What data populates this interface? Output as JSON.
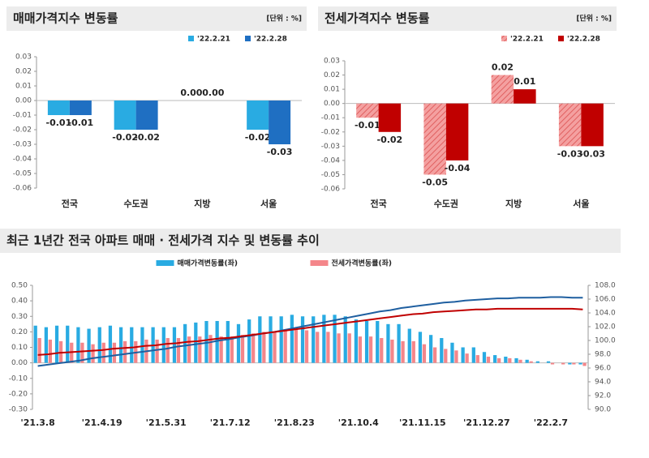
{
  "chart_data": [
    {
      "type": "bar",
      "title": "매매가격지수 변동률",
      "unit": "[단위 : %]",
      "categories": [
        "전국",
        "수도권",
        "지방",
        "서울"
      ],
      "series": [
        {
          "name": "'22.2.21",
          "color": "#29abe2",
          "values": [
            -0.01,
            -0.02,
            0,
            -0.02
          ],
          "value_labels": [
            "-0.01",
            "-0.02",
            "0.00",
            "-0.02"
          ]
        },
        {
          "name": "'22.2.28",
          "color": "#1f6fc2",
          "values": [
            -0.01,
            -0.02,
            0,
            -0.03
          ],
          "value_labels": [
            "-0.01",
            "-0.02",
            "0.00",
            "-0.03"
          ]
        }
      ],
      "ylim": [
        -0.06,
        0.03
      ],
      "yticks": [
        0.03,
        0.02,
        0.01,
        {
          "value": 0,
          "label": "0.00"
        },
        -0.01,
        -0.02,
        -0.03,
        -0.04,
        -0.05,
        -0.06
      ],
      "legend": "top-right",
      "grid": false
    },
    {
      "type": "bar",
      "title": "전세가격지수 변동률",
      "unit": "[단위 : %]",
      "categories": [
        "전국",
        "수도권",
        "지방",
        "서울"
      ],
      "series": [
        {
          "name": "'22.2.21",
          "color": "#f08080",
          "hatch": true,
          "values": [
            -0.01,
            -0.05,
            0.02,
            -0.03
          ]
        },
        {
          "name": "'22.2.28",
          "color": "#c00000",
          "values": [
            -0.02,
            -0.04,
            0.01,
            -0.03
          ]
        }
      ],
      "ylim": [
        -0.06,
        0.03
      ],
      "yticks": [
        0.03,
        0.02,
        0.01,
        {
          "value": 0,
          "label": "0.00"
        },
        -0.01,
        -0.02,
        -0.03,
        -0.04,
        -0.05,
        -0.06
      ],
      "legend": "top-right",
      "grid": false
    },
    {
      "type": "combo",
      "title": "최근 1년간 전국 아파트 매매 · 전세가격 지수 및 변동률 추이",
      "categories": [
        "'21.3.8",
        null,
        null,
        null,
        null,
        null,
        "'21.4.19",
        null,
        null,
        null,
        null,
        null,
        "'21.5.31",
        null,
        null,
        null,
        null,
        null,
        "'21.7.12",
        null,
        null,
        null,
        null,
        null,
        "'21.8.23",
        null,
        null,
        null,
        null,
        null,
        "'21.10.4",
        null,
        null,
        null,
        null,
        null,
        "'21.11.15",
        null,
        null,
        null,
        null,
        null,
        "'21.12.27",
        null,
        null,
        null,
        null,
        null,
        "'22.2.7",
        null,
        null,
        null
      ],
      "series": [
        {
          "name": "매매가격변동률(좌)",
          "type": "bar",
          "color": "#29abe2",
          "values": [
            0.24,
            0.23,
            0.24,
            0.24,
            0.23,
            0.22,
            0.23,
            0.24,
            0.23,
            0.23,
            0.23,
            0.23,
            0.23,
            0.23,
            0.25,
            0.26,
            0.27,
            0.27,
            0.27,
            0.25,
            0.28,
            0.3,
            0.3,
            0.3,
            0.31,
            0.3,
            0.3,
            0.31,
            0.31,
            0.3,
            0.28,
            0.27,
            0.27,
            0.25,
            0.25,
            0.22,
            0.2,
            0.18,
            0.16,
            0.13,
            0.1,
            0.1,
            0.07,
            0.05,
            0.04,
            0.03,
            0.02,
            0.01,
            0.01,
            0.0,
            -0.01,
            -0.01
          ]
        },
        {
          "name": "전세가격변동률(좌)",
          "type": "bar",
          "color": "#f4868a",
          "values": [
            0.16,
            0.15,
            0.14,
            0.13,
            0.13,
            0.12,
            0.13,
            0.13,
            0.14,
            0.14,
            0.15,
            0.15,
            0.16,
            0.16,
            0.17,
            0.17,
            0.18,
            0.17,
            0.17,
            0.18,
            0.19,
            0.2,
            0.2,
            0.21,
            0.22,
            0.21,
            0.2,
            0.2,
            0.19,
            0.19,
            0.17,
            0.17,
            0.16,
            0.15,
            0.14,
            0.14,
            0.12,
            0.1,
            0.09,
            0.08,
            0.06,
            0.05,
            0.04,
            0.03,
            0.03,
            0.02,
            0.01,
            0.0,
            -0.01,
            -0.01,
            -0.01,
            -0.02
          ]
        },
        {
          "type": "line",
          "axis": "y2",
          "color": "#1f5fa0",
          "values": [
            96.3,
            96.5,
            96.7,
            96.9,
            97.1,
            97.4,
            97.6,
            97.8,
            98.0,
            98.2,
            98.4,
            98.6,
            98.8,
            99.1,
            99.3,
            99.5,
            99.7,
            100.0,
            100.2,
            100.5,
            100.7,
            101.0,
            101.2,
            101.5,
            101.8,
            102.1,
            102.4,
            102.7,
            103.0,
            103.3,
            103.6,
            103.9,
            104.2,
            104.4,
            104.7,
            104.9,
            105.1,
            105.3,
            105.5,
            105.6,
            105.8,
            105.9,
            106.0,
            106.1,
            106.1,
            106.2,
            106.2,
            106.2,
            106.3,
            106.3,
            106.2,
            106.2
          ]
        },
        {
          "type": "line",
          "axis": "y2",
          "color": "#c00000",
          "values": [
            97.9,
            98.0,
            98.2,
            98.3,
            98.4,
            98.5,
            98.6,
            98.8,
            98.9,
            99.0,
            99.2,
            99.3,
            99.5,
            99.6,
            99.8,
            99.9,
            100.1,
            100.3,
            100.4,
            100.6,
            100.8,
            101.0,
            101.2,
            101.4,
            101.6,
            101.8,
            102.0,
            102.2,
            102.4,
            102.6,
            102.8,
            103.0,
            103.2,
            103.4,
            103.6,
            103.8,
            103.9,
            104.1,
            104.2,
            104.3,
            104.4,
            104.5,
            104.5,
            104.6,
            104.6,
            104.6,
            104.6,
            104.6,
            104.6,
            104.6,
            104.6,
            104.5
          ]
        }
      ],
      "ylim": [
        -0.3,
        0.5
      ],
      "yticks": [
        {
          "value": 0.5,
          "label": "0.50"
        },
        {
          "value": 0.4,
          "label": "0.40"
        },
        {
          "value": 0.3,
          "label": "0.30"
        },
        {
          "value": 0.2,
          "label": "0.20"
        },
        {
          "value": 0.1,
          "label": "0.10"
        },
        {
          "value": 0,
          "label": "0.00"
        },
        {
          "value": -0.1,
          "label": "-0.10"
        },
        {
          "value": -0.2,
          "label": "-0.20"
        },
        {
          "value": -0.3,
          "label": "-0.30"
        }
      ],
      "y2lim": [
        90,
        108
      ],
      "y2ticks": [
        {
          "value": 108,
          "label": "108.0"
        },
        {
          "value": 106,
          "label": "106.0"
        },
        {
          "value": 104,
          "label": "104.0"
        },
        {
          "value": 102,
          "label": "102.0"
        },
        {
          "value": 100,
          "label": "100.0"
        },
        {
          "value": 98,
          "label": "98.0"
        },
        {
          "value": 96,
          "label": "96.0"
        },
        {
          "value": 94,
          "label": "94.0"
        },
        {
          "value": 92,
          "label": "92.0"
        },
        {
          "value": 90,
          "label": "90.0"
        }
      ],
      "legend": "top-center",
      "grid": false
    }
  ]
}
